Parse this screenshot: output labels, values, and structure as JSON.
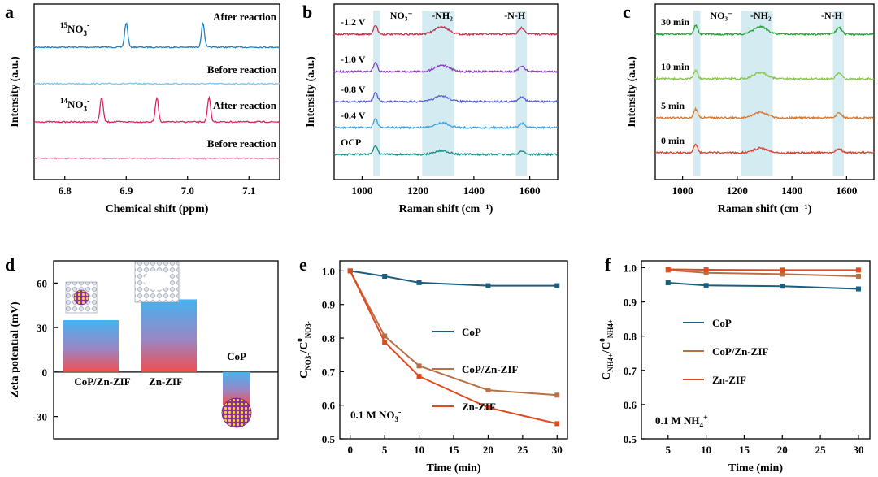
{
  "chart_data": [
    {
      "panel": "a",
      "type": "line",
      "xlabel": "Chemical shift (ppm)",
      "ylabel": "Intensity (a.u.)",
      "xlim": [
        7.15,
        6.75
      ],
      "xticks": [
        "6.8",
        "6.9",
        "7.0",
        "7.1"
      ],
      "tick_values": [
        6.8,
        6.9,
        7.0,
        7.1
      ],
      "series": [
        {
          "name": "After reaction",
          "sample": "15NO3-",
          "sample_label": [
            "15",
            "NO",
            "3",
            "-"
          ],
          "color": "#1f80bf",
          "peaks": [
            6.9,
            7.025
          ]
        },
        {
          "name": "Before reaction",
          "sample": "15NO3-",
          "color": "#7ec8ee",
          "peaks": []
        },
        {
          "name": "After reaction",
          "sample": "14NO3-",
          "sample_label": [
            "14",
            "NO",
            "3",
            "-"
          ],
          "color": "#e0245e",
          "peaks": [
            6.86,
            6.95,
            7.035
          ]
        },
        {
          "name": "Before reaction",
          "sample": "14NO3-",
          "color": "#f08cb4",
          "peaks": []
        }
      ]
    },
    {
      "panel": "b",
      "type": "line",
      "xlabel": "Raman shift (cm⁻¹)",
      "ylabel": "Intensity (a.u.)",
      "xlim": [
        900,
        1700
      ],
      "xticks": [
        1000,
        1200,
        1400,
        1600
      ],
      "bands": [
        {
          "label": "NO₃⁻",
          "range": [
            1040,
            1065
          ]
        },
        {
          "label": "-NH₂",
          "range": [
            1215,
            1330
          ]
        },
        {
          "label": "-N-H",
          "range": [
            1550,
            1590
          ]
        }
      ],
      "series": [
        {
          "name": "-1.2 V",
          "color": "#c4334f"
        },
        {
          "name": "-1.0 V",
          "color": "#8a3fc4"
        },
        {
          "name": "-0.8 V",
          "color": "#5b5fd6"
        },
        {
          "name": "-0.4 V",
          "color": "#3aa3e0"
        },
        {
          "name": "OCP",
          "color": "#1d8f86"
        }
      ]
    },
    {
      "panel": "c",
      "type": "line",
      "xlabel": "Raman shift (cm⁻¹)",
      "ylabel": "Intensity (a.u.)",
      "xlim": [
        900,
        1700
      ],
      "xticks": [
        1000,
        1200,
        1400,
        1600
      ],
      "bands": [
        {
          "label": "NO₃⁻",
          "range": [
            1040,
            1065
          ]
        },
        {
          "label": "-NH₂",
          "range": [
            1215,
            1330
          ]
        },
        {
          "label": "-N-H",
          "range": [
            1550,
            1590
          ]
        }
      ],
      "series": [
        {
          "name": "30 min",
          "color": "#2a9e3c"
        },
        {
          "name": "10 min",
          "color": "#86c643"
        },
        {
          "name": "5 min",
          "color": "#d9772b"
        },
        {
          "name": "0 min",
          "color": "#e0402f"
        }
      ]
    },
    {
      "panel": "d",
      "type": "bar",
      "ylabel": "Zeta potential (mV)",
      "ylim": [
        -45,
        75
      ],
      "yticks": [
        -30,
        0,
        30,
        60
      ],
      "categories": [
        "CoP/Zn-ZIF",
        "Zn-ZIF",
        "CoP"
      ],
      "values": [
        35,
        49,
        -22
      ]
    },
    {
      "panel": "e",
      "type": "line",
      "xlabel": "Time (min)",
      "ylabel": [
        "C",
        "NO3-",
        "/C",
        "0",
        "NO3-"
      ],
      "annotation": [
        "0.1 M NO",
        "3",
        "-"
      ],
      "x": [
        0,
        5,
        10,
        20,
        30
      ],
      "xlim": [
        -1.5,
        31.5
      ],
      "ylim": [
        0.5,
        1.03
      ],
      "xticks": [
        0,
        5,
        10,
        15,
        20,
        25,
        30
      ],
      "yticks": [
        "0.5",
        "0.6",
        "0.7",
        "0.8",
        "0.9",
        "1.0"
      ],
      "series": [
        {
          "name": "CoP",
          "color": "#1b5e7e",
          "values": [
            1.0,
            0.984,
            0.965,
            0.956,
            0.956
          ]
        },
        {
          "name": "CoP/Zn-ZIF",
          "color": "#b87046",
          "values": [
            1.0,
            0.806,
            0.717,
            0.645,
            0.63
          ]
        },
        {
          "name": "Zn-ZIF",
          "color": "#e04a1f",
          "values": [
            1.0,
            0.788,
            0.686,
            0.593,
            0.545
          ]
        }
      ]
    },
    {
      "panel": "f",
      "type": "line",
      "xlabel": "Time (min)",
      "ylabel": [
        "C",
        "NH4+",
        "/C",
        "0",
        "NH4+"
      ],
      "annotation": [
        "0.1 M NH",
        "4",
        "+"
      ],
      "x": [
        5,
        10,
        20,
        30
      ],
      "xlim": [
        1.5,
        31.5
      ],
      "ylim": [
        0.5,
        1.02
      ],
      "xticks": [
        5,
        10,
        15,
        20,
        25,
        30
      ],
      "yticks": [
        "0.5",
        "0.6",
        "0.7",
        "0.8",
        "0.9",
        "1.0"
      ],
      "series": [
        {
          "name": "CoP",
          "color": "#1b5e7e",
          "values": [
            0.956,
            0.948,
            0.946,
            0.938
          ]
        },
        {
          "name": "CoP/Zn-ZIF",
          "color": "#b87046",
          "values": [
            0.993,
            0.985,
            0.981,
            0.975
          ]
        },
        {
          "name": "Zn-ZIF",
          "color": "#e04a1f",
          "values": [
            0.995,
            0.994,
            0.993,
            0.993
          ]
        }
      ]
    }
  ]
}
